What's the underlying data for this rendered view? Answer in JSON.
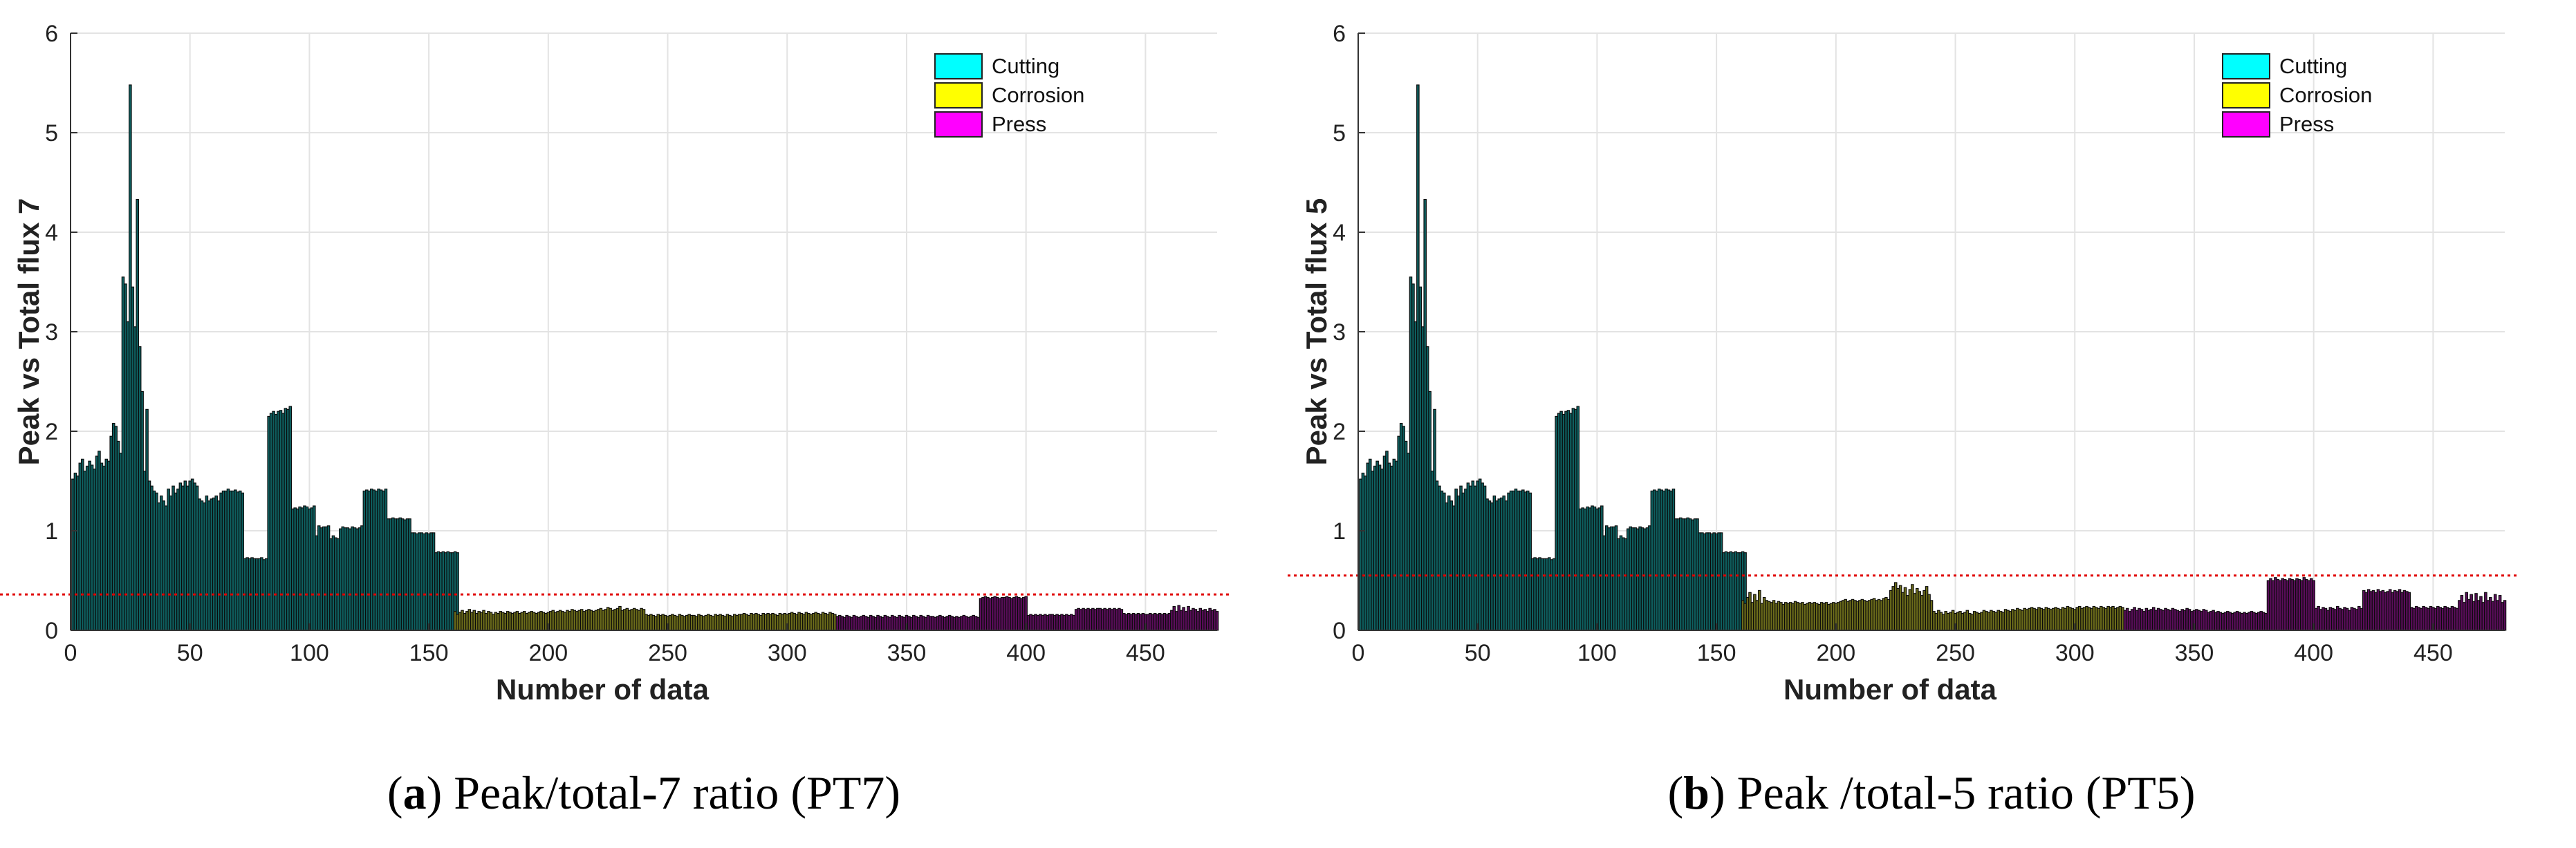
{
  "chart_data": [
    {
      "type": "bar",
      "xlabel": "Number of data",
      "ylabel": "Peak vs Total flux 7",
      "xlim": [
        0,
        480
      ],
      "ylim": [
        0,
        6
      ],
      "xticks": [
        "0",
        "50",
        "100",
        "150",
        "200",
        "250",
        "300",
        "350",
        "400",
        "450"
      ],
      "yticks": [
        "0",
        "1",
        "2",
        "3",
        "4",
        "5",
        "6"
      ],
      "grid": true,
      "legend": "top-right",
      "threshold": 0.36,
      "caption_letter": "a",
      "caption_text": ") Peak/total-7 ratio (PT7)",
      "series": [
        {
          "name": "Cutting",
          "color": "#00ffff",
          "fill": "#0e5f5f",
          "range": [
            1,
            160
          ],
          "values": [
            1.52,
            1.58,
            1.55,
            1.68,
            1.72,
            1.6,
            1.65,
            1.7,
            1.66,
            1.62,
            1.75,
            1.8,
            1.68,
            1.65,
            1.72,
            1.7,
            1.95,
            2.08,
            2.05,
            1.9,
            1.78,
            3.55,
            3.48,
            3.1,
            5.48,
            3.45,
            3.05,
            4.33,
            2.85,
            2.4,
            1.6,
            2.22,
            1.5,
            1.45,
            1.4,
            1.38,
            1.28,
            1.35,
            1.3,
            1.25,
            1.42,
            1.35,
            1.45,
            1.38,
            1.42,
            1.48,
            1.45,
            1.5,
            1.45,
            1.5,
            1.52,
            1.48,
            1.45,
            1.32,
            1.3,
            1.28,
            1.35,
            1.3,
            1.32,
            1.33,
            1.35,
            1.3,
            1.38,
            1.4,
            1.4,
            1.42,
            1.4,
            1.4,
            1.41,
            1.39,
            1.4,
            1.38,
            0.72,
            0.73,
            0.72,
            0.73,
            0.72,
            0.72,
            0.72,
            0.73,
            0.71,
            0.72,
            2.15,
            2.18,
            2.2,
            2.17,
            2.2,
            2.21,
            2.18,
            2.23,
            2.22,
            2.25,
            1.22,
            1.23,
            1.22,
            1.24,
            1.23,
            1.25,
            1.24,
            1.22,
            1.23,
            1.25,
            0.95,
            1.05,
            1.03,
            1.04,
            1.04,
            1.05,
            0.92,
            0.95,
            0.93,
            0.92,
            1.02,
            1.04,
            1.03,
            1.03,
            1.02,
            1.04,
            1.03,
            1.02,
            1.03,
            1.05,
            1.4,
            1.41,
            1.4,
            1.42,
            1.41,
            1.4,
            1.42,
            1.41,
            1.4,
            1.42,
            1.12,
            1.12,
            1.13,
            1.12,
            1.12,
            1.13,
            1.12,
            1.11,
            1.12,
            1.12,
            0.98,
            0.98,
            0.97,
            0.98,
            0.98,
            0.97,
            0.98,
            0.97,
            0.98,
            0.98,
            0.78,
            0.79,
            0.78,
            0.79,
            0.78,
            0.79,
            0.78,
            0.78,
            0.79,
            0.78
          ]
        },
        {
          "name": "Corrosion",
          "color": "#ffff00",
          "fill": "#6b6b1a",
          "range": [
            161,
            320
          ],
          "values": [
            0.19,
            0.16,
            0.18,
            0.2,
            0.17,
            0.19,
            0.21,
            0.18,
            0.2,
            0.17,
            0.19,
            0.18,
            0.2,
            0.17,
            0.19,
            0.18,
            0.16,
            0.18,
            0.17,
            0.19,
            0.18,
            0.17,
            0.19,
            0.18,
            0.17,
            0.18,
            0.19,
            0.17,
            0.18,
            0.19,
            0.17,
            0.18,
            0.19,
            0.18,
            0.17,
            0.18,
            0.19,
            0.18,
            0.17,
            0.18,
            0.19,
            0.2,
            0.18,
            0.19,
            0.2,
            0.19,
            0.18,
            0.2,
            0.19,
            0.21,
            0.2,
            0.19,
            0.2,
            0.21,
            0.19,
            0.2,
            0.21,
            0.2,
            0.19,
            0.2,
            0.21,
            0.22,
            0.2,
            0.21,
            0.23,
            0.22,
            0.2,
            0.21,
            0.22,
            0.24,
            0.2,
            0.21,
            0.22,
            0.2,
            0.21,
            0.22,
            0.21,
            0.2,
            0.22,
            0.21,
            0.16,
            0.15,
            0.16,
            0.15,
            0.14,
            0.16,
            0.15,
            0.16,
            0.15,
            0.14,
            0.15,
            0.16,
            0.15,
            0.14,
            0.16,
            0.15,
            0.14,
            0.15,
            0.16,
            0.15,
            0.15,
            0.14,
            0.16,
            0.15,
            0.14,
            0.15,
            0.16,
            0.15,
            0.14,
            0.16,
            0.15,
            0.16,
            0.15,
            0.14,
            0.16,
            0.15,
            0.14,
            0.16,
            0.15,
            0.16,
            0.16,
            0.17,
            0.16,
            0.15,
            0.17,
            0.16,
            0.17,
            0.16,
            0.15,
            0.17,
            0.16,
            0.17,
            0.16,
            0.17,
            0.16,
            0.15,
            0.17,
            0.16,
            0.17,
            0.16,
            0.17,
            0.18,
            0.17,
            0.16,
            0.18,
            0.17,
            0.16,
            0.18,
            0.17,
            0.16,
            0.17,
            0.18,
            0.17,
            0.16,
            0.18,
            0.17,
            0.16,
            0.18,
            0.17,
            0.16
          ]
        },
        {
          "name": "Press",
          "color": "#ff00ff",
          "fill": "#5a0d5a",
          "range": [
            321,
            480
          ],
          "values": [
            0.14,
            0.15,
            0.14,
            0.13,
            0.15,
            0.14,
            0.13,
            0.15,
            0.14,
            0.13,
            0.14,
            0.15,
            0.14,
            0.13,
            0.15,
            0.14,
            0.13,
            0.15,
            0.14,
            0.13,
            0.15,
            0.14,
            0.13,
            0.15,
            0.14,
            0.13,
            0.15,
            0.14,
            0.13,
            0.15,
            0.14,
            0.13,
            0.15,
            0.14,
            0.13,
            0.15,
            0.14,
            0.13,
            0.15,
            0.14,
            0.14,
            0.13,
            0.14,
            0.15,
            0.14,
            0.13,
            0.14,
            0.15,
            0.14,
            0.13,
            0.14,
            0.13,
            0.14,
            0.15,
            0.14,
            0.13,
            0.14,
            0.15,
            0.14,
            0.13,
            0.32,
            0.33,
            0.34,
            0.33,
            0.32,
            0.33,
            0.34,
            0.33,
            0.32,
            0.33,
            0.33,
            0.34,
            0.33,
            0.32,
            0.33,
            0.34,
            0.33,
            0.32,
            0.33,
            0.34,
            0.15,
            0.16,
            0.15,
            0.16,
            0.15,
            0.16,
            0.15,
            0.16,
            0.15,
            0.16,
            0.16,
            0.15,
            0.16,
            0.15,
            0.16,
            0.15,
            0.16,
            0.15,
            0.16,
            0.15,
            0.21,
            0.22,
            0.21,
            0.22,
            0.21,
            0.22,
            0.21,
            0.22,
            0.21,
            0.22,
            0.22,
            0.21,
            0.22,
            0.21,
            0.22,
            0.21,
            0.22,
            0.21,
            0.22,
            0.21,
            0.17,
            0.16,
            0.17,
            0.16,
            0.17,
            0.16,
            0.17,
            0.16,
            0.17,
            0.16,
            0.16,
            0.17,
            0.16,
            0.17,
            0.16,
            0.17,
            0.16,
            0.17,
            0.16,
            0.17,
            0.2,
            0.24,
            0.19,
            0.25,
            0.2,
            0.23,
            0.19,
            0.24,
            0.2,
            0.22,
            0.21,
            0.19,
            0.22,
            0.2,
            0.21,
            0.19,
            0.22,
            0.2,
            0.21,
            0.19
          ]
        }
      ]
    },
    {
      "type": "bar",
      "xlabel": "Number of data",
      "ylabel": "Peak vs Total flux 5",
      "xlim": [
        0,
        480
      ],
      "ylim": [
        0,
        6
      ],
      "xticks": [
        "0",
        "50",
        "100",
        "150",
        "200",
        "250",
        "300",
        "350",
        "400",
        "450"
      ],
      "yticks": [
        "0",
        "1",
        "2",
        "3",
        "4",
        "5",
        "6"
      ],
      "grid": true,
      "legend": "top-right",
      "threshold": 0.55,
      "caption_letter": "b",
      "caption_text": ") Peak /total-5 ratio (PT5)",
      "series": [
        {
          "name": "Cutting",
          "color": "#00ffff",
          "fill": "#0e5f5f",
          "range": [
            1,
            160
          ],
          "values": [
            1.52,
            1.58,
            1.55,
            1.68,
            1.72,
            1.6,
            1.65,
            1.7,
            1.66,
            1.62,
            1.75,
            1.8,
            1.68,
            1.65,
            1.72,
            1.7,
            1.95,
            2.08,
            2.05,
            1.9,
            1.78,
            3.55,
            3.48,
            3.1,
            5.48,
            3.45,
            3.05,
            4.33,
            2.85,
            2.4,
            1.6,
            2.22,
            1.5,
            1.45,
            1.4,
            1.38,
            1.28,
            1.35,
            1.3,
            1.25,
            1.42,
            1.35,
            1.45,
            1.38,
            1.42,
            1.48,
            1.45,
            1.5,
            1.45,
            1.5,
            1.52,
            1.48,
            1.45,
            1.32,
            1.3,
            1.28,
            1.35,
            1.3,
            1.32,
            1.33,
            1.35,
            1.3,
            1.38,
            1.4,
            1.4,
            1.42,
            1.4,
            1.4,
            1.41,
            1.39,
            1.4,
            1.38,
            0.72,
            0.73,
            0.72,
            0.73,
            0.72,
            0.72,
            0.72,
            0.73,
            0.71,
            0.72,
            2.15,
            2.18,
            2.2,
            2.17,
            2.2,
            2.21,
            2.18,
            2.23,
            2.22,
            2.25,
            1.22,
            1.23,
            1.22,
            1.24,
            1.23,
            1.25,
            1.24,
            1.22,
            1.23,
            1.25,
            0.95,
            1.05,
            1.03,
            1.04,
            1.04,
            1.05,
            0.92,
            0.95,
            0.93,
            0.92,
            1.02,
            1.04,
            1.03,
            1.03,
            1.02,
            1.04,
            1.03,
            1.02,
            1.03,
            1.05,
            1.4,
            1.41,
            1.4,
            1.42,
            1.41,
            1.4,
            1.42,
            1.41,
            1.4,
            1.42,
            1.12,
            1.12,
            1.13,
            1.12,
            1.12,
            1.13,
            1.12,
            1.11,
            1.12,
            1.12,
            0.98,
            0.98,
            0.97,
            0.98,
            0.98,
            0.97,
            0.98,
            0.97,
            0.98,
            0.98,
            0.78,
            0.79,
            0.78,
            0.79,
            0.78,
            0.79,
            0.78,
            0.78,
            0.79,
            0.78
          ]
        },
        {
          "name": "Corrosion",
          "color": "#ffff00",
          "fill": "#6b6b1a",
          "range": [
            161,
            320
          ],
          "values": [
            0.3,
            0.27,
            0.33,
            0.38,
            0.28,
            0.36,
            0.3,
            0.4,
            0.27,
            0.33,
            0.3,
            0.29,
            0.28,
            0.3,
            0.27,
            0.29,
            0.28,
            0.26,
            0.28,
            0.27,
            0.28,
            0.27,
            0.29,
            0.28,
            0.27,
            0.28,
            0.26,
            0.27,
            0.28,
            0.27,
            0.28,
            0.27,
            0.26,
            0.28,
            0.27,
            0.28,
            0.26,
            0.27,
            0.28,
            0.27,
            0.28,
            0.29,
            0.3,
            0.31,
            0.29,
            0.3,
            0.31,
            0.3,
            0.29,
            0.3,
            0.31,
            0.3,
            0.29,
            0.3,
            0.31,
            0.32,
            0.3,
            0.31,
            0.3,
            0.32,
            0.33,
            0.31,
            0.4,
            0.44,
            0.48,
            0.42,
            0.45,
            0.38,
            0.43,
            0.35,
            0.41,
            0.46,
            0.37,
            0.42,
            0.39,
            0.35,
            0.4,
            0.44,
            0.36,
            0.3,
            0.19,
            0.17,
            0.2,
            0.18,
            0.16,
            0.19,
            0.17,
            0.18,
            0.2,
            0.17,
            0.18,
            0.19,
            0.17,
            0.18,
            0.2,
            0.17,
            0.16,
            0.19,
            0.18,
            0.17,
            0.18,
            0.2,
            0.19,
            0.18,
            0.2,
            0.19,
            0.18,
            0.2,
            0.19,
            0.18,
            0.21,
            0.2,
            0.19,
            0.21,
            0.2,
            0.22,
            0.21,
            0.2,
            0.22,
            0.21,
            0.22,
            0.23,
            0.22,
            0.21,
            0.23,
            0.22,
            0.21,
            0.23,
            0.22,
            0.21,
            0.22,
            0.23,
            0.22,
            0.21,
            0.23,
            0.22,
            0.24,
            0.23,
            0.22,
            0.21,
            0.23,
            0.24,
            0.22,
            0.23,
            0.24,
            0.23,
            0.22,
            0.24,
            0.23,
            0.22,
            0.24,
            0.23,
            0.22,
            0.24,
            0.23,
            0.24,
            0.22,
            0.23,
            0.24,
            0.23
          ]
        },
        {
          "name": "Press",
          "color": "#ff00ff",
          "fill": "#5a0d5a",
          "range": [
            321,
            480
          ],
          "values": [
            0.2,
            0.22,
            0.19,
            0.21,
            0.23,
            0.2,
            0.22,
            0.21,
            0.19,
            0.22,
            0.2,
            0.21,
            0.23,
            0.2,
            0.22,
            0.21,
            0.2,
            0.22,
            0.21,
            0.2,
            0.22,
            0.21,
            0.2,
            0.19,
            0.21,
            0.2,
            0.22,
            0.21,
            0.19,
            0.2,
            0.21,
            0.2,
            0.19,
            0.21,
            0.2,
            0.18,
            0.19,
            0.2,
            0.18,
            0.19,
            0.18,
            0.17,
            0.18,
            0.19,
            0.18,
            0.17,
            0.18,
            0.19,
            0.18,
            0.17,
            0.18,
            0.17,
            0.18,
            0.19,
            0.18,
            0.17,
            0.18,
            0.19,
            0.18,
            0.17,
            0.5,
            0.52,
            0.5,
            0.53,
            0.51,
            0.5,
            0.52,
            0.51,
            0.5,
            0.52,
            0.51,
            0.5,
            0.52,
            0.51,
            0.5,
            0.53,
            0.51,
            0.5,
            0.52,
            0.5,
            0.22,
            0.24,
            0.21,
            0.23,
            0.22,
            0.2,
            0.23,
            0.22,
            0.21,
            0.24,
            0.22,
            0.21,
            0.23,
            0.22,
            0.2,
            0.23,
            0.22,
            0.21,
            0.24,
            0.22,
            0.4,
            0.38,
            0.41,
            0.39,
            0.4,
            0.38,
            0.41,
            0.39,
            0.4,
            0.38,
            0.39,
            0.41,
            0.38,
            0.4,
            0.39,
            0.41,
            0.38,
            0.4,
            0.39,
            0.38,
            0.23,
            0.22,
            0.24,
            0.23,
            0.22,
            0.24,
            0.23,
            0.22,
            0.24,
            0.23,
            0.22,
            0.24,
            0.23,
            0.22,
            0.24,
            0.23,
            0.22,
            0.24,
            0.23,
            0.22,
            0.3,
            0.35,
            0.28,
            0.38,
            0.31,
            0.36,
            0.29,
            0.37,
            0.3,
            0.34,
            0.28,
            0.38,
            0.3,
            0.33,
            0.29,
            0.36,
            0.3,
            0.35,
            0.28,
            0.3
          ]
        }
      ]
    }
  ]
}
